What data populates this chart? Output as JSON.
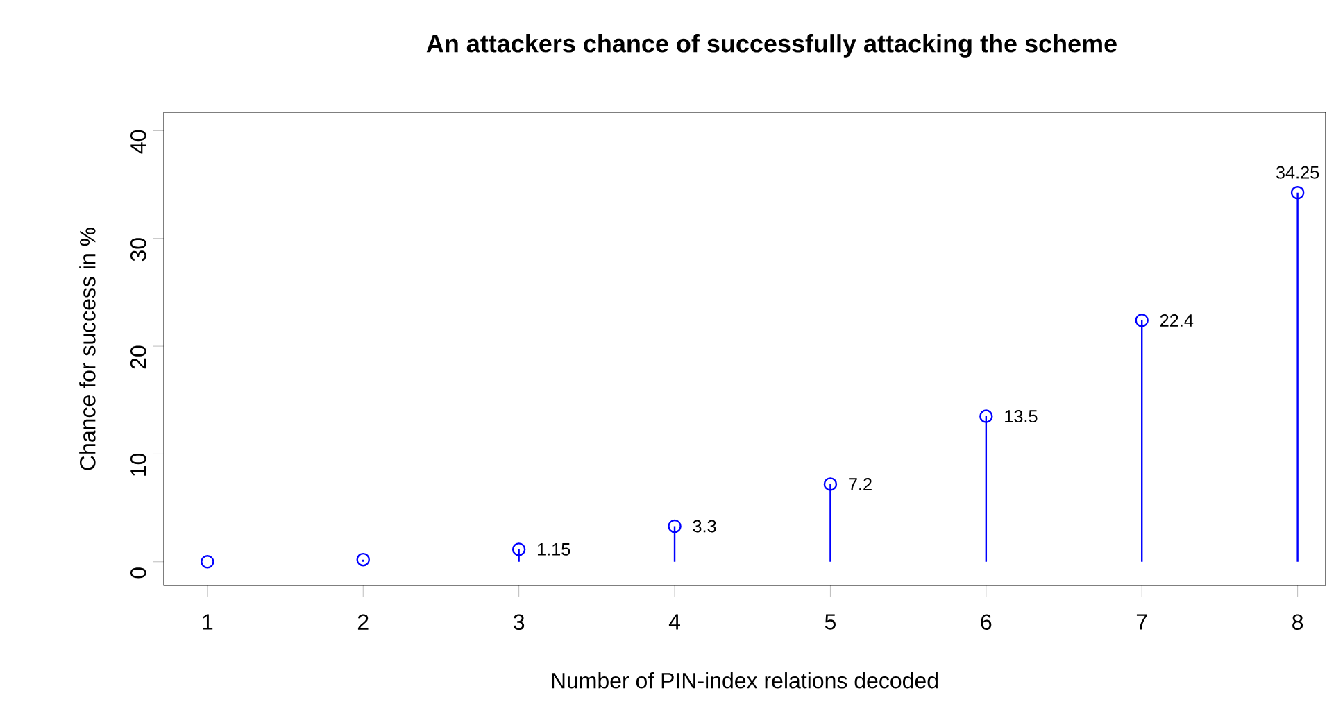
{
  "chart_data": {
    "type": "lollipop",
    "title": "An attackers chance of successfully attacking the scheme",
    "xlabel": "Number of PIN-index relations decoded",
    "ylabel": "Chance for success in %",
    "x": [
      1,
      2,
      3,
      4,
      5,
      6,
      7,
      8
    ],
    "values": [
      0,
      0.2,
      1.15,
      3.3,
      7.2,
      13.5,
      22.4,
      34.25
    ],
    "value_labels": [
      null,
      null,
      "1.15",
      "3.3",
      "7.2",
      "13.5",
      "22.4",
      "34.25"
    ],
    "color": "#0000ff",
    "marker": "circle",
    "grid": false,
    "xlim": [
      0.72,
      8.18
    ],
    "ylim": [
      -2.2,
      41.7
    ],
    "xticks": [
      1,
      2,
      3,
      4,
      5,
      6,
      7,
      8
    ],
    "yticks": [
      0,
      10,
      20,
      30,
      40
    ]
  }
}
